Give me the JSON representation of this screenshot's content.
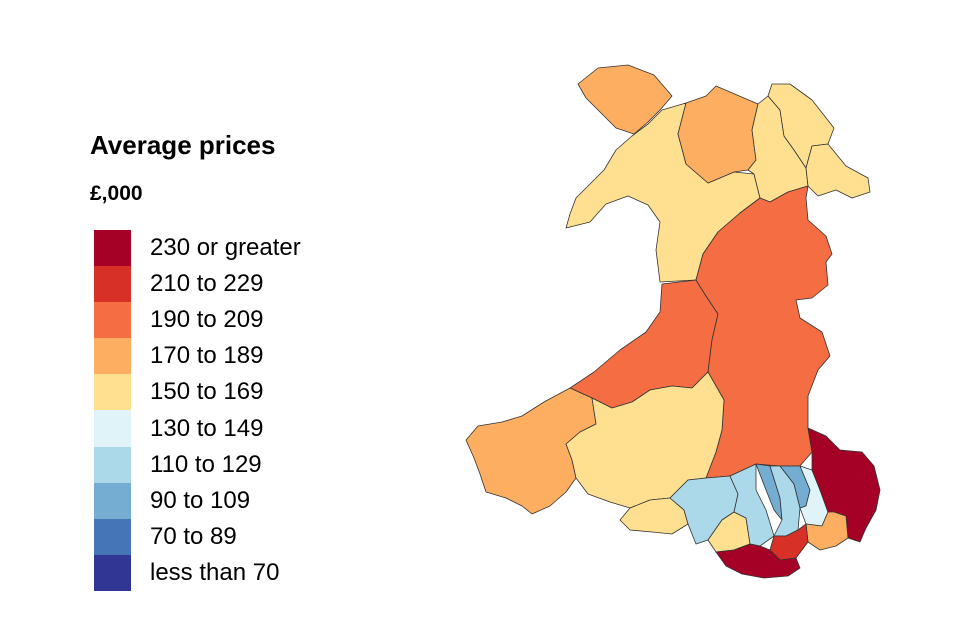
{
  "legend": {
    "title": "Average prices",
    "subtitle": "£,000",
    "items": [
      {
        "label": "230 or greater",
        "color": "#a50026"
      },
      {
        "label": "210 to 229",
        "color": "#d73027"
      },
      {
        "label": "190 to 209",
        "color": "#f46d43"
      },
      {
        "label": "170 to 189",
        "color": "#fdae61"
      },
      {
        "label": "150 to 169",
        "color": "#fee090"
      },
      {
        "label": "130 to 149",
        "color": "#e0f3f8"
      },
      {
        "label": "110 to 129",
        "color": "#abd9e9"
      },
      {
        "label": "90 to 109",
        "color": "#74add1"
      },
      {
        "label": "70 to 89",
        "color": "#4575b4"
      },
      {
        "label": "less than 70",
        "color": "#313695"
      }
    ]
  },
  "map": {
    "regions": [
      {
        "name": "anglesey",
        "band": 3
      },
      {
        "name": "gwynedd",
        "band": 4
      },
      {
        "name": "conwy",
        "band": 3
      },
      {
        "name": "denbighshire",
        "band": 4
      },
      {
        "name": "flintshire",
        "band": 4
      },
      {
        "name": "wrexham",
        "band": 4
      },
      {
        "name": "ceredigion",
        "band": 2
      },
      {
        "name": "powys",
        "band": 2
      },
      {
        "name": "pembrokeshire",
        "band": 3
      },
      {
        "name": "carmarthenshire",
        "band": 4
      },
      {
        "name": "swansea",
        "band": 4
      },
      {
        "name": "neath-port-talbot",
        "band": 6
      },
      {
        "name": "bridgend",
        "band": 4
      },
      {
        "name": "rhondda-cynon-taf",
        "band": 6
      },
      {
        "name": "merthyr-tydfil",
        "band": 7
      },
      {
        "name": "caerphilly",
        "band": 6
      },
      {
        "name": "blaenau-gwent",
        "band": 7
      },
      {
        "name": "torfaen",
        "band": 5
      },
      {
        "name": "monmouthshire",
        "band": 0
      },
      {
        "name": "newport",
        "band": 3
      },
      {
        "name": "cardiff",
        "band": 1
      },
      {
        "name": "vale-of-glamorgan",
        "band": 0
      }
    ]
  }
}
